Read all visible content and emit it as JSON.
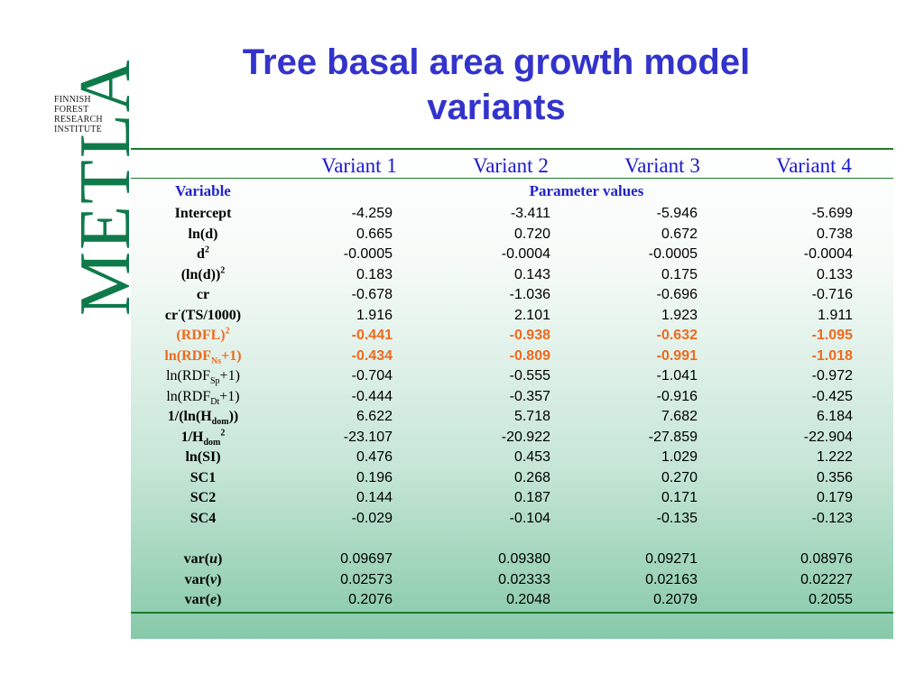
{
  "logo": {
    "line1": "FINNISH",
    "line2": "FOREST",
    "line3": "RESEARCH",
    "line4": "INSTITUTE",
    "wordmark": "METLA"
  },
  "title": "Tree basal area growth model variants",
  "table": {
    "columns": [
      "Variant 1",
      "Variant 2",
      "Variant 3",
      "Variant 4"
    ],
    "variable_header": "Variable",
    "values_header": "Parameter values",
    "rows": [
      {
        "label": "Intercept",
        "values": [
          "-4.259",
          "-3.411",
          "-5.946",
          "-5.699"
        ]
      },
      {
        "label": "ln(d)",
        "values": [
          "0.665",
          "0.720",
          "0.672",
          "0.738"
        ]
      },
      {
        "label": "d",
        "sup": "2",
        "values": [
          "-0.0005",
          "-0.0004",
          "-0.0005",
          "-0.0004"
        ]
      },
      {
        "label": "(ln(d))",
        "sup": "2",
        "values": [
          "0.183",
          "0.143",
          "0.175",
          "0.133"
        ]
      },
      {
        "label": "cr",
        "values": [
          "-0.678",
          "-1.036",
          "-0.696",
          "-0.716"
        ]
      },
      {
        "label_pre": "cr",
        "label_mid": "·",
        "label_post": "(TS/1000)",
        "values": [
          "1.916",
          "2.101",
          "1.923",
          "1.911"
        ]
      },
      {
        "label": "(RDFL)",
        "sup": "2",
        "highlight": true,
        "values": [
          "-0.441",
          "-0.938",
          "-0.632",
          "-1.095"
        ]
      },
      {
        "label_pre": "ln(RDF",
        "sub": "Ns",
        "label_post": "+1)",
        "highlight": true,
        "values": [
          "-0.434",
          "-0.809",
          "-0.991",
          "-1.018"
        ]
      },
      {
        "label_pre": "ln(RDF",
        "sub": "Sp",
        "label_post": "+1)",
        "values": [
          "-0.704",
          "-0.555",
          "-1.041",
          "-0.972"
        ]
      },
      {
        "label_pre": "ln(RDF",
        "sub": "Dt",
        "label_post": "+1)",
        "values": [
          "-0.444",
          "-0.357",
          "-0.916",
          "-0.425"
        ]
      },
      {
        "label_pre": "1/(ln(H",
        "sub": "dom",
        "label_post": "))",
        "values": [
          "6.622",
          "5.718",
          "7.682",
          "6.184"
        ]
      },
      {
        "label_pre": "1/H",
        "sub": "dom",
        "sup": "2",
        "values": [
          "-23.107",
          "-20.922",
          "-27.859",
          "-22.904"
        ]
      },
      {
        "label": "ln(SI)",
        "values": [
          "0.476",
          "0.453",
          "1.029",
          "1.222"
        ]
      },
      {
        "label": "SC1",
        "values": [
          "0.196",
          "0.268",
          "0.270",
          "0.356"
        ]
      },
      {
        "label": "SC2",
        "values": [
          "0.144",
          "0.187",
          "0.171",
          "0.179"
        ]
      },
      {
        "label": "SC4",
        "values": [
          "-0.029",
          "-0.104",
          "-0.135",
          "-0.123"
        ]
      }
    ],
    "variance_rows": [
      {
        "label_pre": "var(",
        "italic": "u",
        "label_post": ")",
        "values": [
          "0.09697",
          "0.09380",
          "0.09271",
          "0.08976"
        ]
      },
      {
        "label_pre": "var(",
        "italic": "v",
        "label_post": ")",
        "values": [
          "0.02573",
          "0.02333",
          "0.02163",
          "0.02227"
        ]
      },
      {
        "label_pre": "var(",
        "italic": "e",
        "label_post": ")",
        "values": [
          "0.2076",
          "0.2048",
          "0.2079",
          "0.2055"
        ]
      }
    ]
  },
  "colors": {
    "title": "#3333cc",
    "header": "#1a1acc",
    "highlight": "#ee6a1e",
    "logo_green": "#0e7a4a",
    "rule": "#1e7a2a"
  }
}
